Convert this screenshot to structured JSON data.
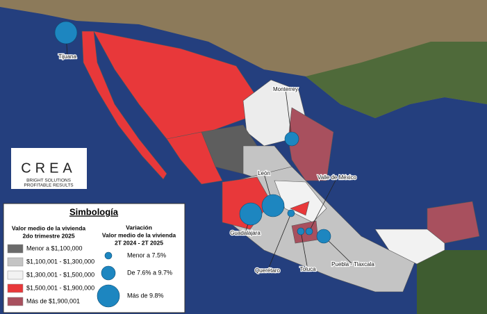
{
  "logo": {
    "name": "CREA",
    "tagline": [
      "BRIGHT SOLUTIONS",
      "PROFITABLE RESULTS"
    ]
  },
  "legend": {
    "title": "Simbología",
    "fill_title": [
      "Valor medio de la vivienda",
      "2do trimestre 2025"
    ],
    "fill_items": [
      {
        "label": "Menor a $1,100,000",
        "color": "#6a6a6a"
      },
      {
        "label": "$1,100,001 - $1,300,000",
        "color": "#c4c4c4"
      },
      {
        "label": "$1,300,001 - $1,500,000",
        "color": "#f2f2f2"
      },
      {
        "label": "$1,500,001 - $1,900,000",
        "color": "#e8383a"
      },
      {
        "label": "Más de $1,900,001",
        "color": "#a8505e"
      }
    ],
    "bubble_title": [
      "Variación",
      "Valor medio de la vivienda",
      "2T 2024 - 2T 2025"
    ],
    "bubble_color": "#1d86c0",
    "bubble_items": [
      {
        "label": "Menor a 7.5%"
      },
      {
        "label": "De 7.6% a 9.7%"
      },
      {
        "label": "Más de 9.8%"
      }
    ]
  },
  "cities": [
    {
      "name": "Tijuana",
      "size_class": 2
    },
    {
      "name": "Monterrey",
      "size_class": 1
    },
    {
      "name": "León",
      "size_class": 2
    },
    {
      "name": "Valle de México",
      "size_class": 0
    },
    {
      "name": "Guadalajara",
      "size_class": 2
    },
    {
      "name": "Querétaro",
      "size_class": 0
    },
    {
      "name": "Toluca",
      "size_class": 0
    },
    {
      "name": "Puebla - Tlaxcala",
      "size_class": 1
    }
  ]
}
